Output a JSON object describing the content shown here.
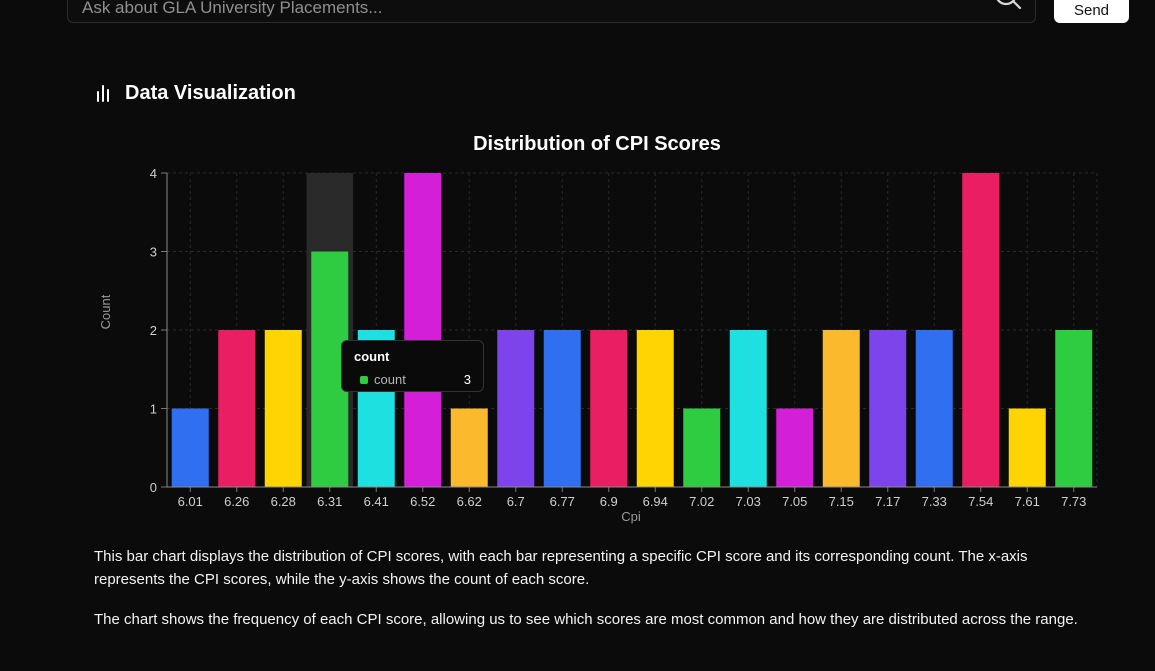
{
  "search": {
    "placeholder": "Ask about GLA University Placements...",
    "send_label": "Send"
  },
  "section": {
    "title": "Data Visualization",
    "icon": "bar-chart-icon"
  },
  "colors": {
    "background": "#0b0b0b",
    "tooltip_swatch": "#2ecc40"
  },
  "chart_data": {
    "type": "bar",
    "title": "Distribution of CPI Scores",
    "xlabel": "Cpi",
    "ylabel": "Count",
    "ylim": [
      0,
      4
    ],
    "yticks": [
      "0",
      "1",
      "2",
      "3",
      "4"
    ],
    "grid": true,
    "categories": [
      "6.01",
      "6.26",
      "6.28",
      "6.31",
      "6.41",
      "6.52",
      "6.62",
      "6.7",
      "6.77",
      "6.9",
      "6.94",
      "7.02",
      "7.03",
      "7.05",
      "7.15",
      "7.17",
      "7.33",
      "7.54",
      "7.61",
      "7.73"
    ],
    "values": [
      1,
      2,
      2,
      3,
      2,
      4,
      1,
      2,
      2,
      2,
      2,
      1,
      2,
      1,
      2,
      2,
      2,
      4,
      1,
      2
    ],
    "bar_colors": [
      "#2f6ff0",
      "#e91e63",
      "#ffd400",
      "#2ecc40",
      "#1fe0e0",
      "#d41fd8",
      "#fbb92e",
      "#7e44ec",
      "#2f6ff0",
      "#e91e63",
      "#ffd400",
      "#2ecc40",
      "#1fe0e0",
      "#d41fd8",
      "#fbb92e",
      "#7e44ec",
      "#2f6ff0",
      "#e91e63",
      "#ffd400",
      "#2ecc40"
    ],
    "hovered_category": "6.31",
    "tooltip": {
      "title": "count",
      "label": "count",
      "value": "3"
    }
  },
  "description": {
    "p1": "This bar chart displays the distribution of CPI scores, with each bar representing a specific CPI score and its corresponding count. The x-axis represents the CPI scores, while the y-axis shows the count of each score.",
    "p2": "The chart shows the frequency of each CPI score, allowing us to see which scores are most common and how they are distributed across the range."
  }
}
